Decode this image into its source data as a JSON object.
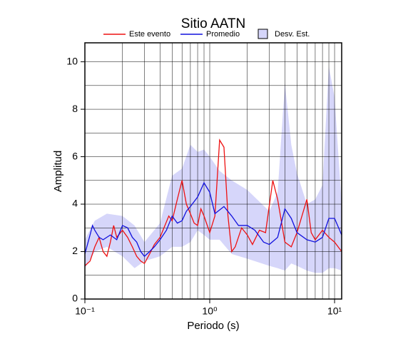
{
  "chart_data": {
    "type": "line",
    "title": "Sitio AATN",
    "x_label": "Periodo (s)",
    "y_label": "Amplitud",
    "xlog": true,
    "grid": true,
    "xlim": [
      0.1,
      11.4
    ],
    "ylim": [
      0,
      10.8
    ],
    "xticks": [
      {
        "value": 0.1,
        "label": "10⁻¹"
      },
      {
        "value": 1,
        "label": "10⁰"
      },
      {
        "value": 10,
        "label": "10¹"
      }
    ],
    "yticks": [
      0,
      2,
      4,
      6,
      8,
      10
    ],
    "xminorticks": [
      0.2,
      0.3,
      0.4,
      0.5,
      0.6,
      0.7,
      0.8,
      0.9,
      2,
      3,
      4,
      5,
      6,
      7,
      8,
      9
    ],
    "yminorticks": [
      1,
      3,
      5,
      7,
      9
    ],
    "band": {
      "name": "Desv. Est.",
      "color": "#d6d6fa",
      "x": [
        0.1,
        0.12,
        0.15,
        0.2,
        0.25,
        0.3,
        0.4,
        0.5,
        0.6,
        0.7,
        0.8,
        0.9,
        1.0,
        1.2,
        1.5,
        2,
        3,
        3.5,
        4,
        4.5,
        5,
        6,
        7,
        8,
        9,
        10,
        11.4
      ],
      "lower": [
        1.3,
        2.0,
        2.2,
        1.8,
        1.3,
        1.6,
        1.8,
        2.2,
        2.2,
        2.4,
        2.9,
        2.7,
        2.5,
        2.5,
        1.9,
        1.7,
        1.4,
        1.3,
        1.2,
        1.5,
        1.4,
        1.2,
        1.1,
        1.1,
        1.3,
        1.3,
        1.2
      ],
      "upper": [
        2.5,
        3.3,
        3.6,
        3.5,
        3.1,
        2.4,
        3.2,
        5.2,
        5.5,
        6.5,
        6.2,
        6.3,
        6.0,
        5.4,
        5.0,
        4.6,
        3.7,
        4.5,
        9.1,
        6.5,
        5.3,
        4.0,
        4.2,
        4.8,
        9.8,
        8.5,
        4.0
      ]
    },
    "series": [
      {
        "name": "Este evento",
        "color": "#ee1111",
        "x": [
          0.1,
          0.11,
          0.12,
          0.13,
          0.14,
          0.15,
          0.16,
          0.17,
          0.18,
          0.2,
          0.22,
          0.24,
          0.26,
          0.28,
          0.3,
          0.33,
          0.36,
          0.4,
          0.43,
          0.47,
          0.5,
          0.55,
          0.6,
          0.65,
          0.7,
          0.75,
          0.8,
          0.85,
          0.9,
          1.0,
          1.1,
          1.2,
          1.3,
          1.4,
          1.5,
          1.6,
          1.8,
          2.0,
          2.2,
          2.5,
          2.8,
          3.2,
          3.5,
          4,
          4.5,
          5,
          6,
          6.5,
          7,
          8,
          9,
          10,
          11.4
        ],
        "values": [
          1.4,
          1.6,
          2.2,
          2.6,
          2.0,
          1.8,
          2.4,
          3.1,
          2.6,
          2.9,
          2.6,
          2.2,
          1.8,
          1.6,
          1.5,
          1.9,
          2.3,
          2.6,
          3.0,
          3.5,
          3.3,
          4.2,
          5.0,
          4.0,
          3.6,
          3.2,
          3.1,
          3.8,
          3.5,
          2.8,
          3.5,
          6.7,
          6.4,
          3.5,
          2.0,
          2.2,
          3.0,
          2.7,
          2.3,
          2.9,
          2.8,
          5.0,
          4.2,
          2.4,
          2.2,
          2.8,
          4.2,
          2.8,
          2.5,
          2.9,
          2.6,
          2.4,
          2.0
        ]
      },
      {
        "name": "Promedio",
        "color": "#1111dd",
        "x": [
          0.1,
          0.11,
          0.115,
          0.12,
          0.13,
          0.14,
          0.16,
          0.18,
          0.2,
          0.22,
          0.24,
          0.26,
          0.28,
          0.3,
          0.33,
          0.36,
          0.4,
          0.45,
          0.5,
          0.55,
          0.6,
          0.65,
          0.7,
          0.8,
          0.9,
          1.0,
          1.1,
          1.3,
          1.5,
          1.7,
          2,
          2.3,
          2.7,
          3,
          3.5,
          4,
          4.5,
          5,
          6,
          7,
          8,
          9,
          10,
          11.4
        ],
        "values": [
          1.9,
          2.7,
          3.1,
          2.9,
          2.6,
          2.5,
          2.7,
          2.5,
          3.1,
          3.0,
          2.6,
          2.4,
          2.0,
          1.8,
          2.0,
          2.2,
          2.5,
          2.9,
          3.5,
          3.2,
          3.3,
          3.7,
          3.9,
          4.3,
          4.9,
          4.5,
          3.6,
          3.9,
          3.5,
          3.1,
          3.1,
          2.9,
          2.4,
          2.3,
          2.6,
          3.8,
          3.4,
          2.8,
          2.5,
          2.4,
          2.6,
          3.4,
          3.4,
          2.7
        ]
      }
    ]
  }
}
